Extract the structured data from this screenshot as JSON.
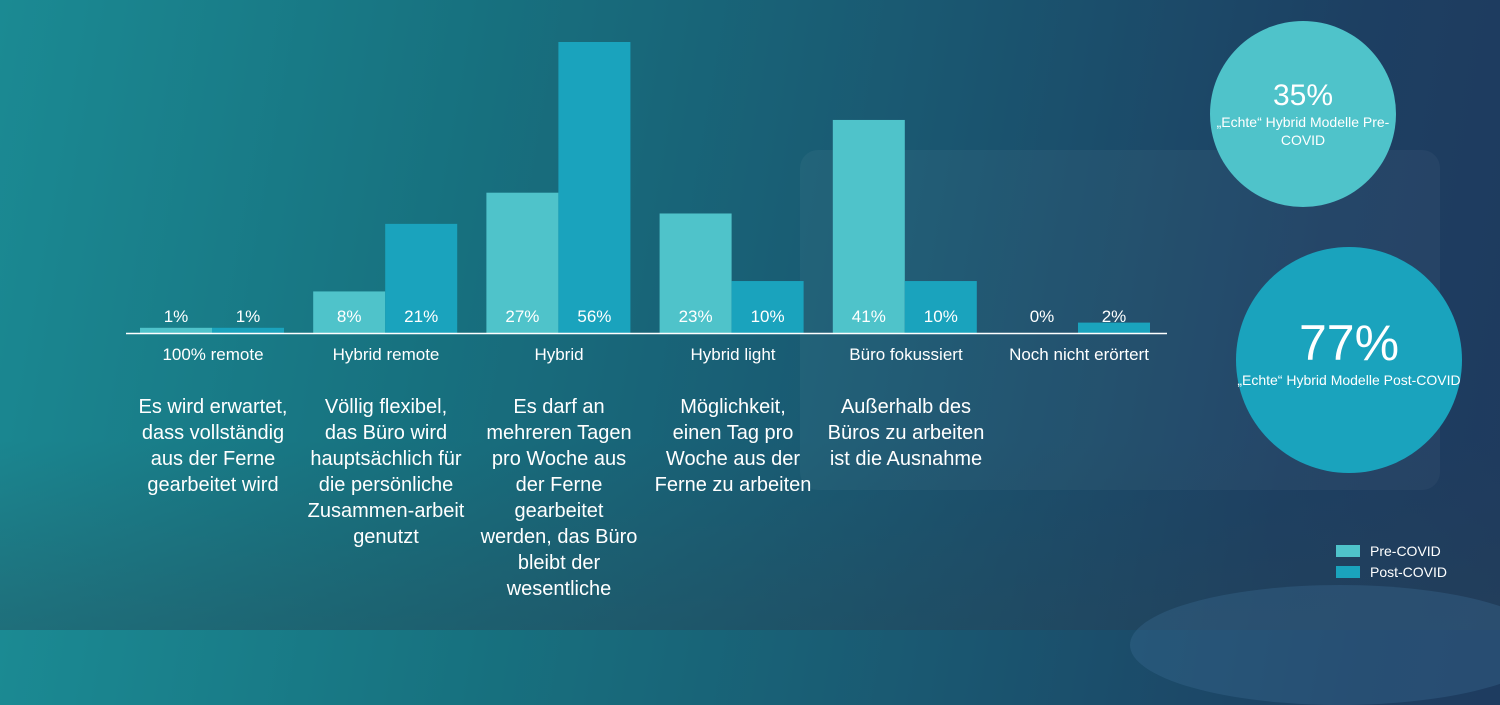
{
  "colors": {
    "pre": "#4fc3ca",
    "post": "#1aa3bd",
    "axis": "#ffffff"
  },
  "chart_data": {
    "type": "bar",
    "categories": [
      "100% remote",
      "Hybrid remote",
      "Hybrid",
      "Hybrid light",
      "Büro fokussiert",
      "Noch nicht erörtert"
    ],
    "series": [
      {
        "name": "Pre-COVID",
        "values": [
          1,
          8,
          27,
          23,
          41,
          0
        ],
        "labels": [
          "1%",
          "8%",
          "27%",
          "23%",
          "41%",
          "0%"
        ]
      },
      {
        "name": "Post-COVID",
        "values": [
          1,
          21,
          56,
          10,
          10,
          2
        ],
        "labels": [
          "1%",
          "21%",
          "56%",
          "10%",
          "10%",
          "2%"
        ]
      }
    ],
    "ylim": [
      0,
      56
    ],
    "grid": false,
    "legend_position": "bottom-right"
  },
  "descriptions": [
    "Es wird erwartet, dass vollständig aus der Ferne gearbeitet wird",
    "Völlig flexibel, das Büro wird hauptsächlich für die persönliche Zusammen-arbeit genutzt",
    "Es darf an mehreren Tagen pro Woche aus der Ferne gearbeitet werden, das Büro bleibt der wesentliche",
    "Möglichkeit, einen Tag pro Woche aus der Ferne zu arbeiten",
    "Außerhalb des Büros zu arbeiten ist die Ausnahme"
  ],
  "circles": {
    "pre": {
      "value": "35%",
      "text": "„Echte“ Hybrid Modelle Pre-COVID"
    },
    "post": {
      "value": "77%",
      "text": "„Echte“ Hybrid Modelle Post-COVID"
    }
  },
  "legend": {
    "pre_label": "Pre-COVID",
    "post_label": "Post-COVID"
  }
}
